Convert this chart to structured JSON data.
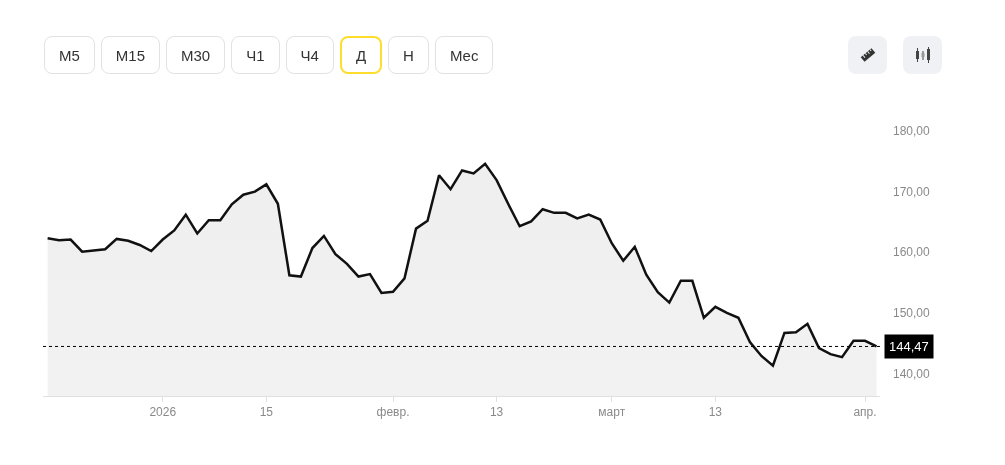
{
  "chart_data": {
    "type": "area",
    "categories": [
      null,
      null,
      null,
      null,
      null,
      null,
      null,
      null,
      null,
      null,
      "2026",
      null,
      null,
      null,
      null,
      null,
      null,
      null,
      null,
      "15",
      null,
      null,
      null,
      null,
      null,
      null,
      null,
      null,
      null,
      null,
      "февр.",
      null,
      null,
      null,
      null,
      null,
      null,
      null,
      null,
      "13",
      null,
      null,
      null,
      null,
      null,
      null,
      null,
      null,
      null,
      "март",
      null,
      null,
      null,
      null,
      null,
      null,
      null,
      null,
      "13",
      null,
      null,
      null,
      null,
      null,
      null,
      null,
      null,
      null,
      null,
      null,
      null,
      "апр.",
      null
    ],
    "series": [
      {
        "color": "#111111",
        "values": [
          162.3,
          162.0,
          162.1,
          160.1,
          160.3,
          160.5,
          162.2,
          161.9,
          161.2,
          160.2,
          162.1,
          163.6,
          166.2,
          163.1,
          165.3,
          165.3,
          167.9,
          169.5,
          170.0,
          171.2,
          168.0,
          156.2,
          156.0,
          160.7,
          162.7,
          159.7,
          158.1,
          156.0,
          156.4,
          153.3,
          153.5,
          155.7,
          163.9,
          165.2,
          172.7,
          170.4,
          173.5,
          173.0,
          174.6,
          171.9,
          168.0,
          164.3,
          165.1,
          167.1,
          166.5,
          166.5,
          165.6,
          166.2,
          165.4,
          161.5,
          158.6,
          160.9,
          156.3,
          153.4,
          151.7,
          155.3,
          155.3,
          149.2,
          151.0,
          150.0,
          149.2,
          145.2,
          142.9,
          141.3,
          146.7,
          146.8,
          148.2,
          144.2,
          143.2,
          142.7,
          145.4,
          145.4,
          144.5
        ]
      }
    ],
    "ylim": [
      136.3,
      180
    ],
    "yticks": [
      {
        "value": 140,
        "label": "140,00"
      },
      {
        "value": 150,
        "label": "150,00"
      },
      {
        "value": 160,
        "label": "160,00"
      },
      {
        "value": 170,
        "label": "170,00"
      },
      {
        "value": 180,
        "label": "180,00"
      }
    ],
    "grid": false,
    "marker": "none",
    "line_style": "solid",
    "ref_lines": [
      {
        "axis": "y",
        "value": 144.47,
        "label": "144,47",
        "color": "#000000",
        "line_style": "dotted"
      }
    ],
    "annotations": [
      "M5",
      "M15",
      "M30",
      "Ч1",
      "Ч4",
      "Д",
      "Н",
      "Мес"
    ]
  }
}
